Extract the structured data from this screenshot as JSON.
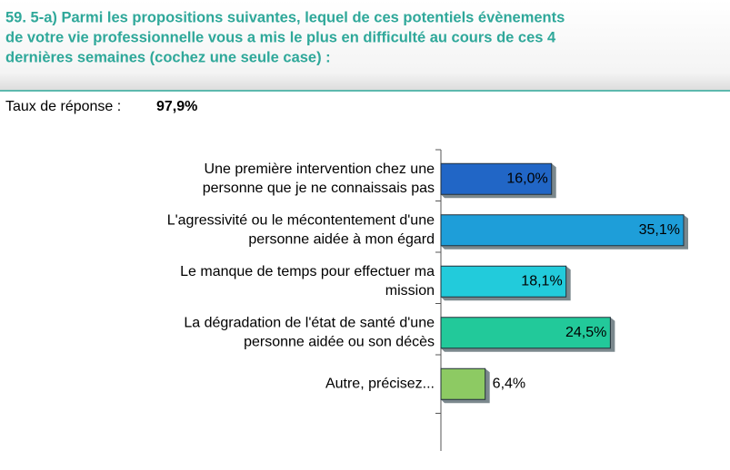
{
  "chart_data": {
    "type": "barh",
    "title": [
      "59. 5-a) Parmi les propositions suivantes, lequel de ces potentiels évènements",
      "de votre vie professionnelle vous a mis le plus en difficulté au cours de ces 4",
      "dernières semaines (cochez une seule case) :"
    ],
    "response_label": "Taux de réponse :",
    "response_rate": {
      "value": 97.9,
      "label": "97,9%"
    },
    "categories": [
      [
        "Une première intervention chez une",
        "personne que je ne connaissais pas"
      ],
      [
        "L'agressivité ou le mécontentement d'une",
        "personne aidée à mon égard"
      ],
      [
        "Le manque de temps pour effectuer ma",
        "mission"
      ],
      [
        "La dégradation de l'état de santé d'une",
        "personne aidée ou son décès"
      ],
      [
        "Autre, précisez..."
      ]
    ],
    "values": [
      16.0,
      35.1,
      18.1,
      24.5,
      6.4
    ],
    "value_labels": [
      "16,0%",
      "35,1%",
      "18,1%",
      "24,5%",
      "6,4%"
    ],
    "colors": [
      "#2166c6",
      "#1e9ed9",
      "#22cbdb",
      "#22c99a",
      "#8dca63"
    ],
    "xlim": [
      0,
      35.1
    ]
  }
}
